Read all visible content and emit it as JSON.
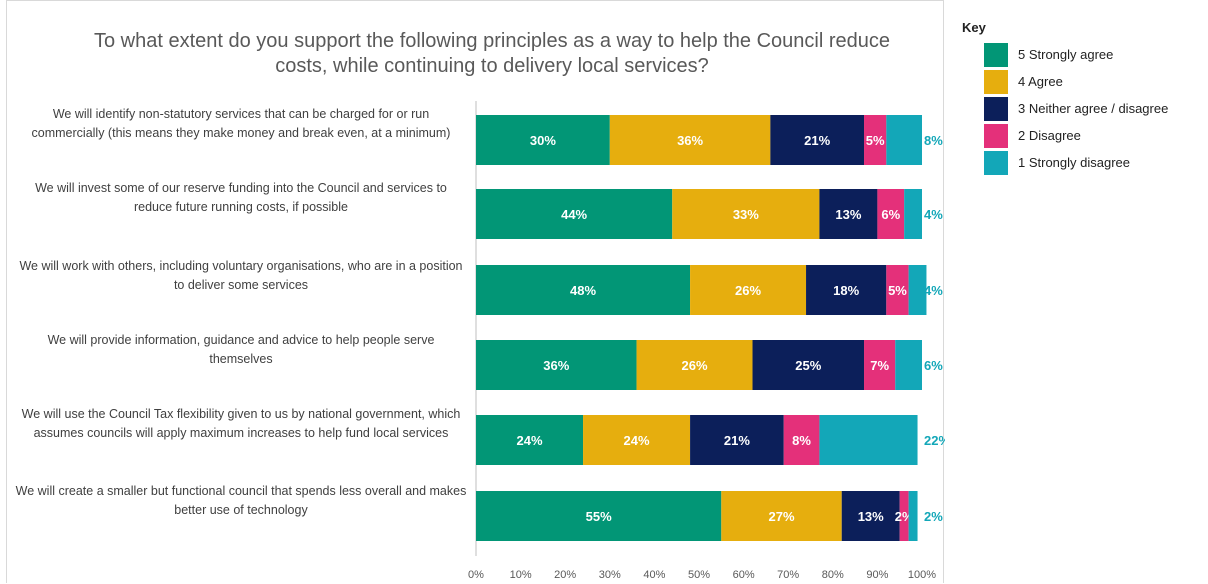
{
  "chart_data": {
    "type": "bar",
    "orientation": "horizontal",
    "stacked": true,
    "title": "To what extent do you support the following principles as a way to help the Council reduce costs, while continuing to delivery local services?",
    "categories": [
      "We will identify non-statutory services that can be charged for or run commercially (this means they make money and break even, at a minimum)",
      "We will invest some of our reserve funding into the Council and services to reduce future running costs, if possible",
      "We will work with others, including voluntary organisations, who are in a position to deliver some services",
      "We will provide information, guidance and advice to help people serve themselves",
      "We will use the Council Tax flexibility given to us by national government, which assumes councils will apply maximum increases to help fund local services",
      "We will create a smaller but functional council that spends less overall and makes better use of technology"
    ],
    "series": [
      {
        "name": "5 Strongly agree",
        "color": "#029676",
        "values": [
          30,
          44,
          48,
          36,
          24,
          55
        ],
        "labels": [
          "30%",
          "44%",
          "48%",
          "36%",
          "24%",
          "55%"
        ]
      },
      {
        "name": "4 Agree",
        "color": "#E6AE0E",
        "values": [
          36,
          33,
          26,
          26,
          24,
          27
        ],
        "labels": [
          "36%",
          "33%",
          "26%",
          "26%",
          "24%",
          "27%"
        ]
      },
      {
        "name": "3 Neither agree / disagree",
        "color": "#0C1F5A",
        "values": [
          21,
          13,
          18,
          25,
          21,
          13
        ],
        "labels": [
          "21%",
          "13%",
          "18%",
          "25%",
          "21%",
          "13%"
        ]
      },
      {
        "name": "2 Disagree",
        "color": "#E4307A",
        "values": [
          5,
          6,
          5,
          7,
          8,
          2
        ],
        "labels": [
          "5%",
          "6%",
          "5%",
          "7%",
          "8%",
          "2%"
        ]
      },
      {
        "name": "1 Strongly disagree",
        "color": "#13A7B8",
        "values": [
          8,
          4,
          4,
          6,
          22,
          2
        ],
        "labels": [
          "8%",
          "4%",
          "4%",
          "6%",
          "22%",
          "2%"
        ]
      }
    ],
    "xlim": [
      0,
      100
    ],
    "x_ticks": [
      "0%",
      "10%",
      "20%",
      "30%",
      "40%",
      "50%",
      "60%",
      "70%",
      "80%",
      "90%",
      "100%"
    ],
    "grid": false,
    "legend": {
      "title": "Key",
      "position": "right"
    }
  }
}
